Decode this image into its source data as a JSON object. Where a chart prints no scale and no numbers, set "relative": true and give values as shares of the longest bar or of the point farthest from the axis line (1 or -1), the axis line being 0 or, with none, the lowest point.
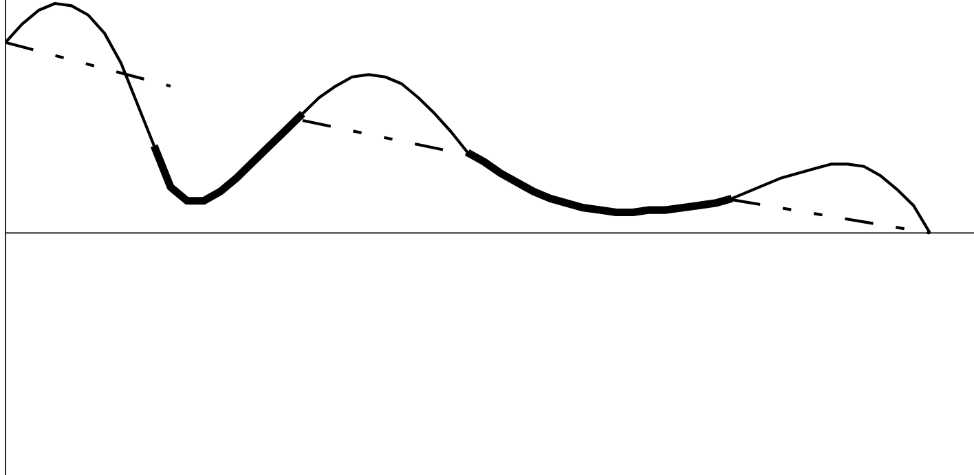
{
  "chart_data": {
    "type": "line",
    "relative": true,
    "categories": [
      null,
      null,
      null,
      null,
      null,
      null,
      null,
      null,
      null,
      null,
      null,
      null,
      null,
      null,
      null,
      null,
      null,
      null,
      null,
      null,
      null,
      null,
      null,
      null,
      null,
      null,
      null,
      null,
      null,
      null,
      null,
      null,
      null,
      null,
      null,
      null,
      null,
      null,
      null,
      null,
      null,
      null,
      null,
      null,
      null,
      null,
      null,
      null,
      null,
      null,
      null,
      null,
      null,
      null,
      null,
      null,
      null
    ],
    "grid": false,
    "legend": false,
    "series": [
      {
        "color": "#000000",
        "line_style": "solid",
        "values": [
          0.83,
          0.91,
          0.97,
          1.0,
          0.99,
          0.95,
          0.87,
          0.74,
          0.56,
          0.38,
          0.2,
          0.14,
          0.14,
          0.18,
          0.24,
          0.31,
          0.38,
          0.45,
          0.52,
          0.59,
          0.64,
          0.68,
          0.69,
          0.68,
          0.65,
          0.59,
          0.52,
          0.44,
          0.35,
          0.31,
          0.26,
          0.22,
          0.18,
          0.15,
          0.13,
          0.11,
          0.1,
          0.09,
          0.09,
          0.1,
          0.1,
          0.11,
          0.12,
          0.13,
          0.15,
          0.18,
          0.21,
          0.24,
          0.26,
          0.28,
          0.3,
          0.3,
          0.29,
          0.25,
          0.19,
          0.12,
          0.0
        ]
      },
      {
        "color": "#000000",
        "line_style": "solid",
        "values": [
          null,
          null,
          null,
          null,
          null,
          null,
          null,
          null,
          null,
          0.38,
          0.2,
          0.14,
          0.14,
          0.18,
          0.24,
          0.31,
          0.38,
          0.45,
          0.52,
          null,
          null,
          null,
          null,
          null,
          null,
          null,
          null,
          null,
          null,
          null,
          null,
          null,
          null,
          null,
          null,
          null,
          null,
          null,
          null,
          null,
          null,
          null,
          null,
          null,
          null,
          null,
          null,
          null,
          null,
          null,
          null,
          null,
          null,
          null,
          null,
          null,
          null
        ]
      },
      {
        "color": "#000000",
        "line_style": "solid",
        "values": [
          null,
          null,
          null,
          null,
          null,
          null,
          null,
          null,
          null,
          null,
          null,
          null,
          null,
          null,
          null,
          null,
          null,
          null,
          null,
          null,
          null,
          null,
          null,
          null,
          null,
          null,
          null,
          null,
          0.35,
          0.31,
          0.26,
          0.22,
          0.18,
          0.15,
          0.13,
          0.11,
          0.1,
          0.09,
          0.09,
          0.1,
          0.1,
          0.11,
          0.12,
          0.13,
          0.15,
          null,
          null,
          null,
          null,
          null,
          null,
          null,
          null,
          null,
          null,
          null,
          null
        ]
      },
      {
        "color": "#000000",
        "line_style": "dashed",
        "values": [
          0.83,
          null,
          null,
          null,
          null,
          null,
          null,
          null,
          null,
          null,
          0.64,
          null,
          null,
          null,
          null,
          null,
          null,
          null,
          null,
          null,
          null,
          null,
          null,
          null,
          null,
          null,
          null,
          null,
          null,
          null,
          null,
          null,
          null,
          null,
          null,
          null,
          null,
          null,
          null,
          null,
          null,
          null,
          null,
          null,
          null,
          null,
          null,
          null,
          null,
          null,
          null,
          null,
          null,
          null,
          null,
          null,
          null
        ]
      },
      {
        "color": "#000000",
        "line_style": "dashed",
        "values": [
          null,
          null,
          null,
          null,
          null,
          null,
          null,
          null,
          null,
          null,
          null,
          null,
          null,
          null,
          null,
          null,
          null,
          null,
          0.49,
          null,
          null,
          null,
          null,
          null,
          null,
          null,
          null,
          null,
          0.34,
          null,
          null,
          null,
          null,
          null,
          null,
          null,
          null,
          null,
          null,
          null,
          null,
          null,
          null,
          null,
          null,
          null,
          null,
          null,
          null,
          null,
          null,
          null,
          null,
          null,
          null,
          null,
          null
        ]
      },
      {
        "color": "#000000",
        "line_style": "dashed",
        "values": [
          null,
          null,
          null,
          null,
          null,
          null,
          null,
          null,
          null,
          null,
          null,
          null,
          null,
          null,
          null,
          null,
          null,
          null,
          null,
          null,
          null,
          null,
          null,
          null,
          null,
          null,
          null,
          null,
          null,
          null,
          null,
          null,
          null,
          null,
          null,
          null,
          null,
          null,
          null,
          null,
          null,
          null,
          null,
          null,
          0.145,
          null,
          null,
          null,
          null,
          null,
          null,
          null,
          null,
          null,
          null,
          null,
          0.0
        ]
      }
    ]
  }
}
